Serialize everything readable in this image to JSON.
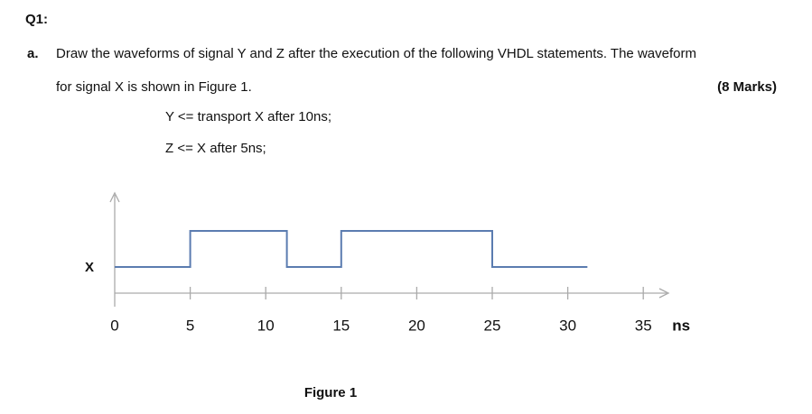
{
  "question": {
    "number": "Q1:",
    "part": "a.",
    "text_line1": "Draw the waveforms of signal Y and Z after the execution of the following VHDL statements. The waveform",
    "text_line2": "for signal X is shown in Figure 1.",
    "marks": "(8 Marks)",
    "statements": [
      "Y <= transport X after 10ns;",
      "Z <= X after 5ns;"
    ]
  },
  "figure": {
    "signal": "X",
    "caption": "Figure 1",
    "unit": "ns",
    "xlim": [
      0,
      37
    ],
    "xticks": [
      0,
      5,
      10,
      15,
      20,
      25,
      30,
      35
    ],
    "waveform": {
      "t": [
        0,
        5,
        5,
        11.4,
        11.4,
        15,
        15,
        25,
        25,
        31.3
      ],
      "level": [
        0,
        0,
        1,
        1,
        0,
        0,
        1,
        1,
        0,
        0
      ]
    },
    "color": "#5b7cb0"
  }
}
